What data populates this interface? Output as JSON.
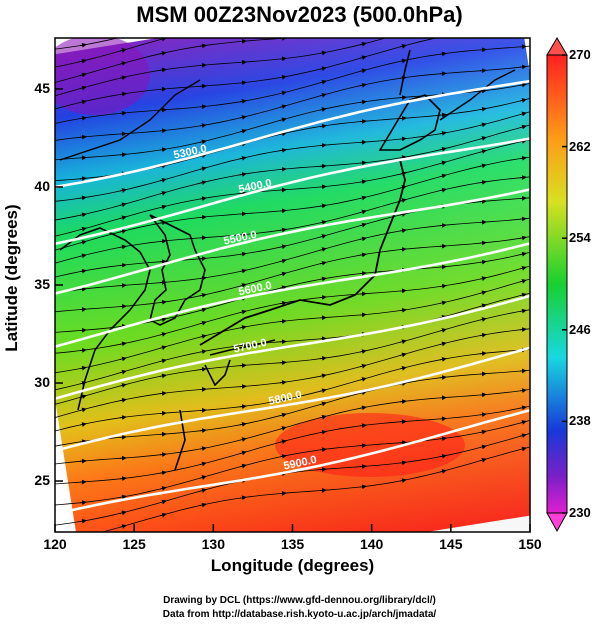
{
  "title": "MSM 00Z23Nov2023 (500.0hPa)",
  "x_axis": {
    "label": "Longitude (degrees)",
    "ticks": [
      "120",
      "125",
      "130",
      "135",
      "140",
      "145",
      "150"
    ],
    "range": [
      120,
      150
    ]
  },
  "y_axis": {
    "label": "Latitude  (degrees)",
    "ticks": [
      "25",
      "30",
      "35",
      "40",
      "45"
    ],
    "range": [
      22.4,
      47.6
    ]
  },
  "colorbar": {
    "ticks": [
      "270",
      "262",
      "254",
      "246",
      "238",
      "230"
    ],
    "range": [
      230,
      270
    ]
  },
  "contours": [
    {
      "label": "5300.0"
    },
    {
      "label": "5400.0"
    },
    {
      "label": "5500.0"
    },
    {
      "label": "5600.0"
    },
    {
      "label": "5700.0"
    },
    {
      "label": "5800.0"
    },
    {
      "label": "5900.0"
    }
  ],
  "credit": {
    "line1": "Drawing by DCL (https://www.gfd-dennou.org/library/dcl/)",
    "line2": "Data from http://database.rish.kyoto-u.ac.jp/arch/jmadata/"
  },
  "colors": {
    "cold": "#8a1ab0",
    "warm": "#ff2020",
    "contour": "#ffffff",
    "coast": "#000000"
  }
}
